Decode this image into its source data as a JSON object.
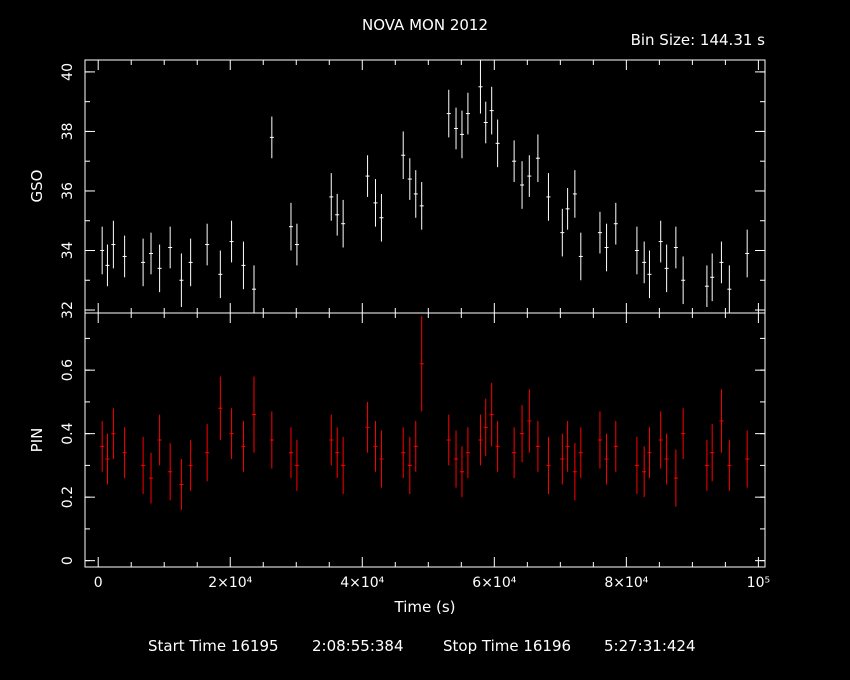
{
  "chart_data": [
    {
      "type": "scatter",
      "panel": "top",
      "title": "NOVA MON 2012",
      "bin_size_text": "Bin Size: 144.31 s",
      "ylabel": "GSO",
      "ylim": [
        31.9,
        40.4
      ],
      "xlim": [
        -2000,
        101000
      ],
      "yticks": [
        32,
        34,
        36,
        38,
        40
      ],
      "color": "#ffffff",
      "series": [
        {
          "x": [
            600,
            1400,
            2300,
            4000,
            6800,
            8000,
            9300,
            10900,
            12600,
            14000,
            16500,
            18500,
            20200,
            22000,
            23600,
            26300,
            29200,
            30100,
            35300,
            36200,
            37100,
            40800,
            42000,
            42900,
            46200,
            47200,
            48100,
            49000,
            53100,
            54200,
            55100,
            56000,
            57900,
            58700,
            59600,
            60500,
            63000,
            64200,
            65300,
            66600,
            68200,
            70300,
            71100,
            72200,
            73100,
            76000,
            77000,
            78400,
            81600,
            82700,
            83500,
            85200,
            86100,
            87500,
            88600,
            92200,
            93000,
            94400,
            95600,
            98300
          ],
          "y": [
            34.0,
            33.5,
            34.2,
            33.8,
            33.6,
            33.9,
            33.4,
            34.1,
            33.0,
            33.6,
            34.2,
            33.2,
            34.3,
            33.5,
            32.7,
            37.8,
            34.8,
            34.2,
            35.8,
            35.2,
            34.9,
            36.5,
            35.6,
            35.1,
            37.2,
            36.4,
            35.9,
            35.5,
            38.6,
            38.1,
            37.9,
            38.6,
            39.5,
            38.3,
            38.7,
            37.6,
            37.0,
            36.2,
            36.5,
            37.1,
            35.8,
            34.6,
            35.4,
            35.9,
            33.8,
            34.6,
            34.1,
            34.9,
            34.0,
            33.6,
            33.2,
            34.3,
            33.4,
            34.1,
            33.0,
            32.8,
            33.1,
            33.6,
            32.7,
            33.9
          ],
          "err": [
            0.8,
            0.7,
            0.8,
            0.7,
            0.8,
            0.7,
            0.8,
            0.7,
            0.9,
            0.8,
            0.7,
            0.8,
            0.7,
            0.8,
            0.8,
            0.7,
            0.8,
            0.7,
            0.8,
            0.7,
            0.8,
            0.7,
            0.8,
            0.8,
            0.8,
            0.7,
            0.8,
            0.8,
            0.8,
            0.7,
            0.8,
            0.7,
            0.9,
            0.7,
            0.8,
            0.8,
            0.7,
            0.8,
            0.7,
            0.8,
            0.8,
            0.8,
            0.7,
            0.8,
            0.8,
            0.7,
            0.8,
            0.7,
            0.8,
            0.7,
            0.8,
            0.7,
            0.8,
            0.7,
            0.8,
            0.7,
            0.8,
            0.7,
            0.8,
            0.8
          ]
        }
      ]
    },
    {
      "type": "scatter",
      "panel": "bottom",
      "ylabel": "PIN",
      "xlabel": "Time (s)",
      "ylim": [
        -0.02,
        0.78
      ],
      "xlim": [
        -2000,
        101000
      ],
      "yticks": [
        "0",
        "0.2",
        "0.4",
        "0.6"
      ],
      "ytick_values": [
        0,
        0.2,
        0.4,
        0.6
      ],
      "xticks": [
        "0",
        "2×10⁴",
        "4×10⁴",
        "6×10⁴",
        "8×10⁴",
        "10⁵"
      ],
      "xtick_values": [
        0,
        20000,
        40000,
        60000,
        80000,
        100000
      ],
      "color": "#ff0000",
      "series": [
        {
          "x": [
            600,
            1400,
            2300,
            4000,
            6800,
            8000,
            9300,
            10900,
            12600,
            14000,
            16500,
            18500,
            20200,
            22000,
            23600,
            26300,
            29200,
            30100,
            35300,
            36200,
            37100,
            40800,
            42000,
            42900,
            46200,
            47200,
            48100,
            49000,
            53100,
            54200,
            55100,
            56000,
            57900,
            58700,
            59600,
            60500,
            63000,
            64200,
            65300,
            66600,
            68200,
            70300,
            71100,
            72200,
            73100,
            76000,
            77000,
            78400,
            81600,
            82700,
            83500,
            85200,
            86100,
            87500,
            88600,
            92200,
            93000,
            94400,
            95600,
            98300
          ],
          "y": [
            0.36,
            0.32,
            0.4,
            0.34,
            0.3,
            0.26,
            0.38,
            0.28,
            0.24,
            0.3,
            0.34,
            0.48,
            0.4,
            0.36,
            0.46,
            0.38,
            0.34,
            0.3,
            0.38,
            0.34,
            0.3,
            0.42,
            0.36,
            0.32,
            0.34,
            0.3,
            0.36,
            0.62,
            0.38,
            0.32,
            0.28,
            0.34,
            0.38,
            0.42,
            0.46,
            0.36,
            0.34,
            0.4,
            0.44,
            0.36,
            0.3,
            0.32,
            0.36,
            0.28,
            0.34,
            0.38,
            0.32,
            0.36,
            0.3,
            0.28,
            0.34,
            0.38,
            0.32,
            0.26,
            0.4,
            0.3,
            0.34,
            0.44,
            0.3,
            0.32
          ],
          "err": [
            0.08,
            0.08,
            0.08,
            0.08,
            0.09,
            0.08,
            0.08,
            0.09,
            0.08,
            0.08,
            0.09,
            0.1,
            0.08,
            0.08,
            0.12,
            0.09,
            0.08,
            0.08,
            0.08,
            0.08,
            0.09,
            0.08,
            0.08,
            0.09,
            0.08,
            0.09,
            0.08,
            0.15,
            0.08,
            0.09,
            0.08,
            0.08,
            0.08,
            0.09,
            0.1,
            0.08,
            0.08,
            0.09,
            0.1,
            0.08,
            0.09,
            0.08,
            0.08,
            0.09,
            0.08,
            0.09,
            0.08,
            0.08,
            0.09,
            0.08,
            0.08,
            0.09,
            0.08,
            0.09,
            0.08,
            0.08,
            0.09,
            0.1,
            0.08,
            0.09
          ]
        }
      ]
    }
  ],
  "footer": {
    "start_label": "Start Time 16195",
    "start_time": "2:08:55:384",
    "stop_label": "Stop Time 16196",
    "stop_time": "5:27:31:424"
  }
}
